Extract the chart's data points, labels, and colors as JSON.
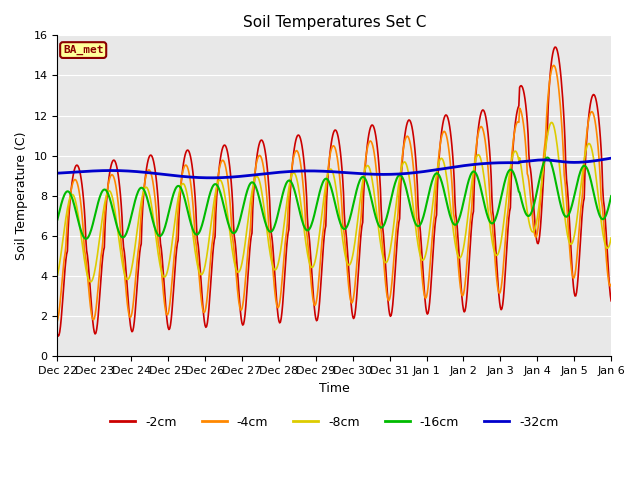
{
  "title": "Soil Temperatures Set C",
  "xlabel": "Time",
  "ylabel": "Soil Temperature (C)",
  "ylim": [
    0,
    16
  ],
  "label": "BA_met",
  "series": [
    {
      "name": "-2cm",
      "color": "#cc0000",
      "lw": 1.2
    },
    {
      "name": "-4cm",
      "color": "#ff8800",
      "lw": 1.2
    },
    {
      "name": "-8cm",
      "color": "#ddcc00",
      "lw": 1.2
    },
    {
      "name": "-16cm",
      "color": "#00bb00",
      "lw": 1.5
    },
    {
      "name": "-32cm",
      "color": "#0000cc",
      "lw": 2.0
    }
  ],
  "xtick_labels": [
    "Dec 22",
    "Dec 23",
    "Dec 24",
    "Dec 25",
    "Dec 26",
    "Dec 27",
    "Dec 28",
    "Dec 29",
    "Dec 30",
    "Dec 31",
    "Jan 1",
    "Jan 2",
    "Jan 3",
    "Jan 4",
    "Jan 5",
    "Jan 6"
  ],
  "background_color": "#e8e8e8",
  "title_fontsize": 11,
  "axis_fontsize": 9,
  "tick_fontsize": 8
}
